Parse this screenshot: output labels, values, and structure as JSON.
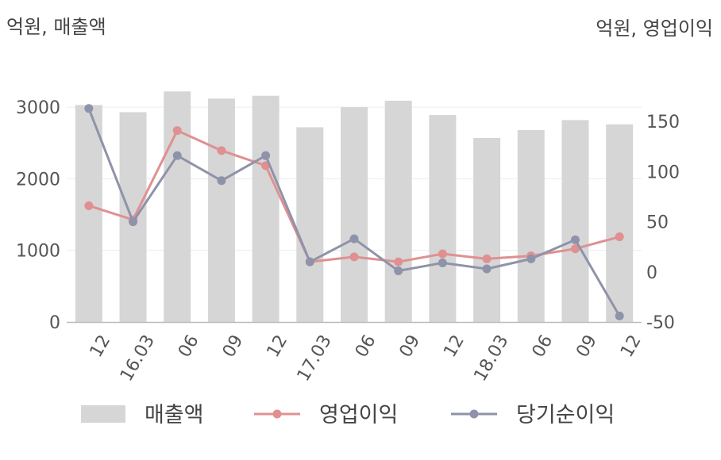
{
  "chart_data": {
    "type": "bar",
    "categories": [
      "12",
      "16.03",
      "06",
      "09",
      "12",
      "17.03",
      "06",
      "09",
      "12",
      "18.03",
      "06",
      "09",
      "12"
    ],
    "left_axis": {
      "unit_label": "억원, 매출액",
      "ylim": [
        0,
        3500
      ],
      "ticks": [
        0,
        1000,
        2000,
        3000
      ]
    },
    "right_axis": {
      "unit_label": "억원, 영업이익",
      "ylim": [
        -50,
        200
      ],
      "ticks": [
        -50,
        0,
        50,
        100,
        150
      ]
    },
    "series": [
      {
        "name": "매출액",
        "type": "bar",
        "axis": "left",
        "color": "#d6d6d6",
        "values": [
          3030,
          2930,
          3220,
          3120,
          3160,
          2720,
          3000,
          3090,
          2890,
          2570,
          2680,
          2820,
          2760
        ]
      },
      {
        "name": "영업이익",
        "type": "line",
        "axis": "right",
        "color": "#e09090",
        "values": [
          66,
          52,
          141,
          121,
          106,
          10,
          15,
          10,
          18,
          13,
          16,
          23,
          35
        ]
      },
      {
        "name": "당기순이익",
        "type": "line",
        "axis": "right",
        "color": "#8e93aa",
        "values": [
          163,
          50,
          116,
          91,
          116,
          10,
          33,
          1,
          9,
          3,
          13,
          32,
          -44
        ]
      }
    ],
    "grid": true,
    "legend": "bottom"
  }
}
